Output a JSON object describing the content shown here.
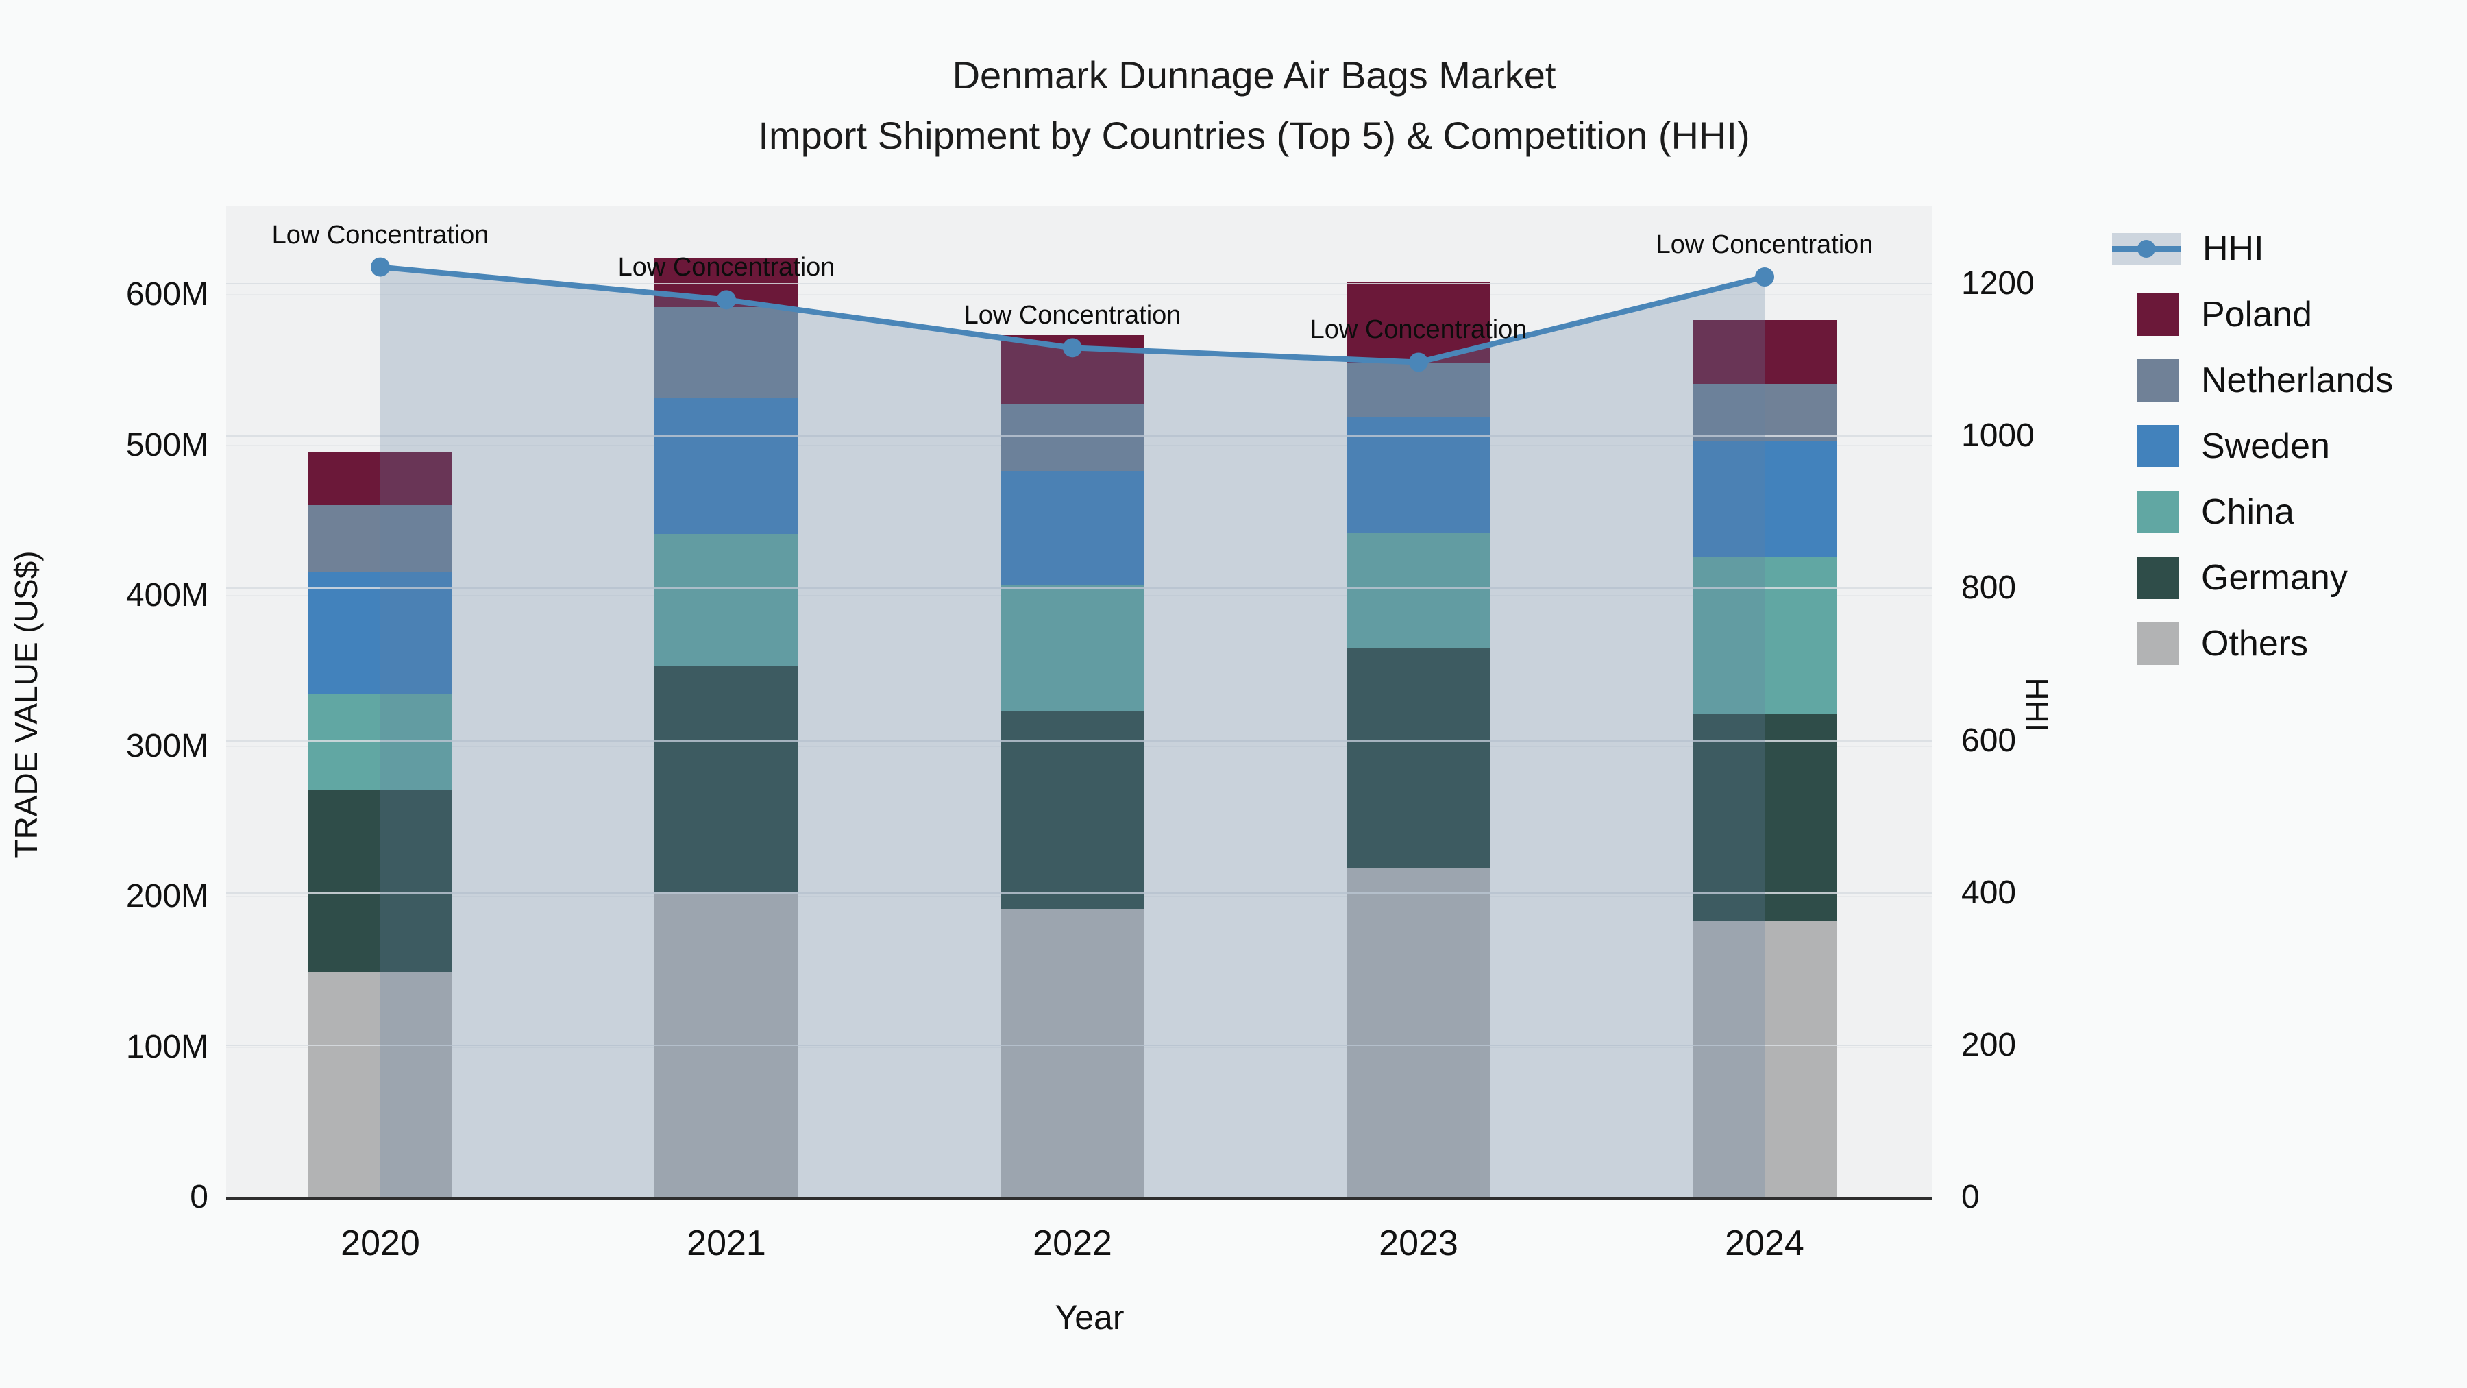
{
  "title": {
    "line1": "Denmark Dunnage Air Bags Market",
    "line2": "Import Shipment by Countries (Top 5) & Competition (HHI)"
  },
  "axes": {
    "y_left_label": "TRADE VALUE (US$)",
    "y_right_label": "HHI",
    "x_label": "Year",
    "y_left_ticks": [
      "0",
      "100M",
      "200M",
      "300M",
      "400M",
      "500M",
      "600M"
    ],
    "y_right_ticks": [
      "0",
      "200",
      "400",
      "600",
      "800",
      "1000",
      "1200"
    ]
  },
  "legend": {
    "items": [
      {
        "label": "HHI",
        "type": "line"
      },
      {
        "label": "Poland",
        "type": "patch"
      },
      {
        "label": "Netherlands",
        "type": "patch"
      },
      {
        "label": "Sweden",
        "type": "patch"
      },
      {
        "label": "China",
        "type": "patch"
      },
      {
        "label": "Germany",
        "type": "patch"
      },
      {
        "label": "Others",
        "type": "patch"
      }
    ]
  },
  "chart_data": {
    "type": "bar",
    "subtype": "stacked-bars-with-line",
    "title": "Denmark Dunnage Air Bags Market — Import Shipment by Countries (Top 5) & Competition (HHI)",
    "xlabel": "Year",
    "ylabel_left": "TRADE VALUE (US$)",
    "ylabel_right": "HHI",
    "categories": [
      "2020",
      "2021",
      "2022",
      "2023",
      "2024"
    ],
    "series": [
      {
        "name": "Others",
        "color": "#b2b3b4",
        "values": [
          150,
          203,
          192,
          219,
          184
        ]
      },
      {
        "name": "Germany",
        "color": "#2f4d49",
        "values": [
          121,
          150,
          131,
          146,
          137
        ]
      },
      {
        "name": "China",
        "color": "#61a7a3",
        "values": [
          64,
          88,
          84,
          77,
          105
        ]
      },
      {
        "name": "Sweden",
        "color": "#4282bc",
        "values": [
          81,
          90,
          76,
          77,
          77
        ]
      },
      {
        "name": "Netherlands",
        "color": "#708197",
        "values": [
          44,
          61,
          44,
          36,
          38
        ]
      },
      {
        "name": "Poland",
        "color": "#6b1839",
        "values": [
          35,
          32,
          46,
          53,
          42
        ]
      }
    ],
    "totals": [
      495,
      624,
      573,
      608,
      583
    ],
    "line": {
      "name": "HHI",
      "color": "#4a86b8",
      "fill_color": "rgba(100,130,160,0.28)",
      "values": [
        1222,
        1179,
        1116,
        1097,
        1209
      ]
    },
    "annotations": [
      "Low Concentration",
      "Low Concentration",
      "Low Concentration",
      "Low Concentration",
      "Low Concentration"
    ],
    "units_left": "US$ (M = millions)",
    "ylim_left": [
      0,
      660
    ],
    "ylim_right": [
      0,
      1320
    ],
    "grid": true,
    "legend_position": "right"
  }
}
